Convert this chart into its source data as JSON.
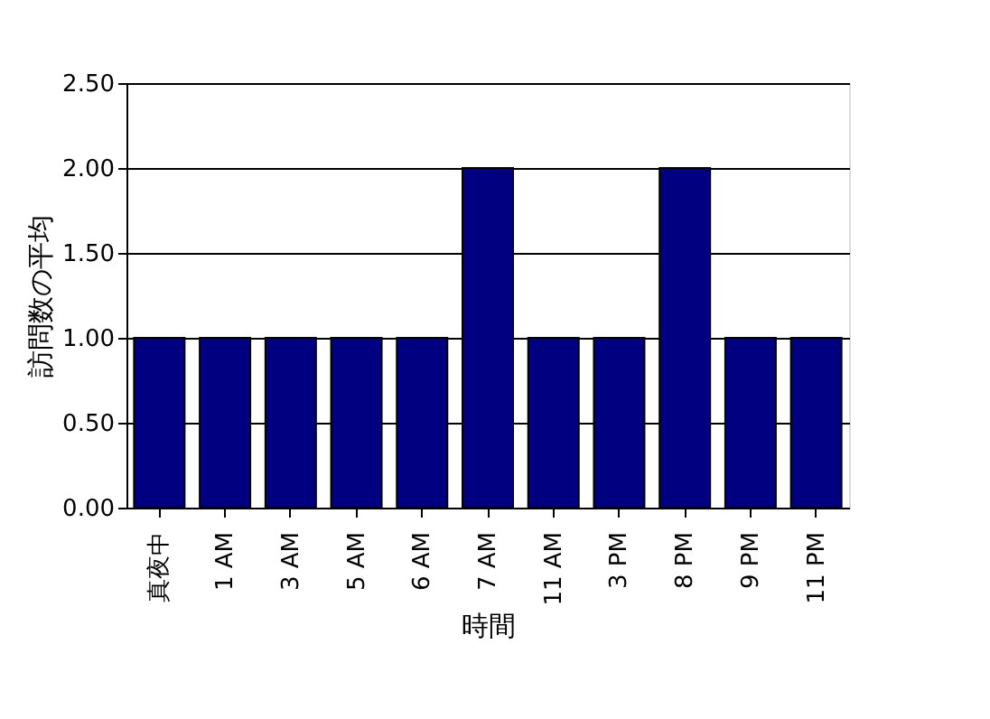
{
  "chart_data": {
    "type": "bar",
    "xlabel": "時間",
    "ylabel": "訪問数の平均",
    "categories": [
      "真夜中",
      "1 AM",
      "3 AM",
      "5 AM",
      "6 AM",
      "7 AM",
      "11 AM",
      "3 PM",
      "8 PM",
      "9 PM",
      "11 PM"
    ],
    "values": [
      1.0,
      1.0,
      1.0,
      1.0,
      1.0,
      2.0,
      1.0,
      1.0,
      2.0,
      1.0,
      1.0
    ],
    "color": "#000080",
    "ylim": [
      0,
      2.5
    ],
    "yticks": [
      {
        "value": 0,
        "label": "0.00"
      },
      {
        "value": 0.5,
        "label": "0.50"
      },
      {
        "value": 1,
        "label": "1.00"
      },
      {
        "value": 1.5,
        "label": "1.50"
      },
      {
        "value": 2,
        "label": "2.00"
      },
      {
        "value": 2.5,
        "label": "2.50"
      }
    ],
    "grid": "y"
  }
}
